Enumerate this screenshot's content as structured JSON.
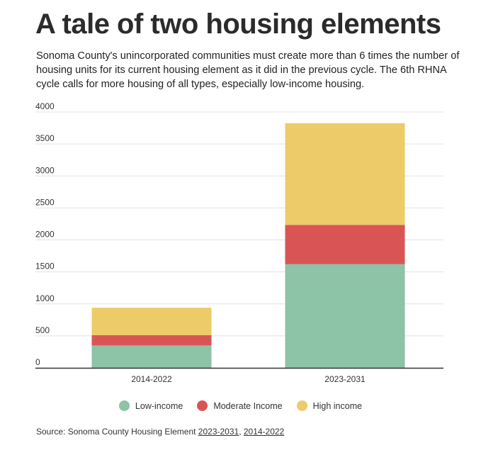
{
  "title": "A tale of two housing elements",
  "subtitle": "Sonoma County's unincorporated communities must create more than 6 times the number of housing units for its current housing element as it did in the previous cycle. The 6th RHNA cycle calls for more housing of all types, especially low-income housing.",
  "source": {
    "prefix": "Source: Sonoma County Housing Element ",
    "link1": "2023-2031",
    "separator": ", ",
    "link2": "2014-2022"
  },
  "colors": {
    "low_income": "#8dc3a7",
    "moderate_income": "#d95555",
    "high_income": "#eecb69"
  },
  "chart_data": {
    "type": "bar",
    "stacked": true,
    "categories": [
      "2014-2022",
      "2023-2031"
    ],
    "series": [
      {
        "name": "Low-income",
        "values": [
          350,
          1620
        ]
      },
      {
        "name": "Moderate Income",
        "values": [
          160,
          615
        ]
      },
      {
        "name": "High income",
        "values": [
          430,
          1590
        ]
      }
    ],
    "ylim": [
      0,
      4000
    ],
    "yticks": [
      0,
      500,
      1000,
      1500,
      2000,
      2500,
      3000,
      3500,
      4000
    ],
    "grid": true,
    "legend_position": "bottom"
  }
}
